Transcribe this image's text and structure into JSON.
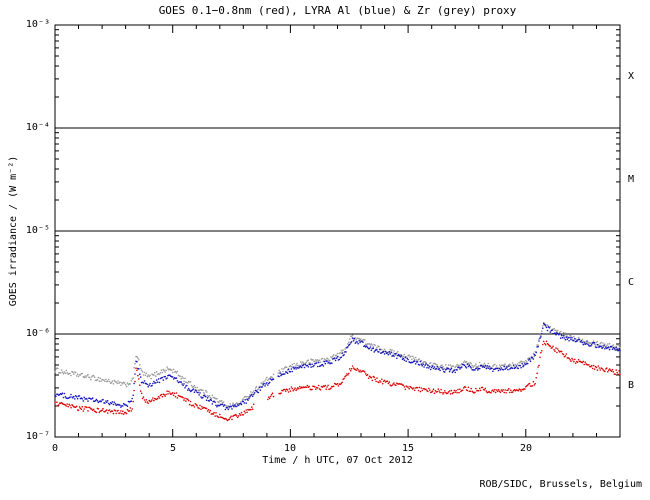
{
  "credit": "ROB/SIDC, Brussels, Belgium",
  "chart_data": {
    "type": "scatter",
    "title": "GOES 0.1−0.8nm (red), LYRA Al (blue) & Zr (grey) proxy",
    "xlabel": "Time / h UTC, 07 Oct 2012",
    "ylabel": "GOES irradiance / (W m⁻²)",
    "xlim": [
      0,
      24
    ],
    "ylim_log10": [
      -7,
      -3
    ],
    "grid": false,
    "legend": "none (colors named in title)",
    "x_major_ticks": [
      0,
      5,
      10,
      15,
      20
    ],
    "x_tick_labels": [
      "0",
      "5",
      "10",
      "15",
      "20"
    ],
    "y_tick_exponents": [
      -3,
      -4,
      -5,
      -6,
      -7
    ],
    "y_tick_labels": [
      "10⁻³",
      "10⁻⁴",
      "10⁻⁵",
      "10⁻⁶",
      "10⁻⁷"
    ],
    "hlines": [
      0.0001,
      1e-05,
      1e-06
    ],
    "flare_classes": [
      {
        "label": "X",
        "band": [
          -3,
          -4
        ]
      },
      {
        "label": "M",
        "band": [
          -4,
          -5
        ]
      },
      {
        "label": "C",
        "band": [
          -5,
          -6
        ]
      },
      {
        "label": "B",
        "band": [
          -6,
          -7
        ]
      }
    ],
    "series": [
      {
        "name": "LYRA Zr proxy",
        "color": "#9a9a9a",
        "x": [
          0,
          0.5,
          1,
          1.5,
          2,
          2.5,
          3,
          3.3,
          3.45,
          3.7,
          4,
          4.4,
          4.8,
          5.1,
          5.5,
          6,
          6.5,
          7,
          7.4,
          7.8,
          8.2,
          8.6,
          9,
          9.5,
          10,
          10.5,
          11,
          11.5,
          12,
          12.3,
          12.6,
          13,
          13.5,
          14,
          14.5,
          15,
          15.5,
          16,
          16.5,
          17,
          17.4,
          17.8,
          18.2,
          18.6,
          19,
          19.5,
          20,
          20.4,
          20.75,
          21,
          21.5,
          22,
          22.5,
          23,
          23.5,
          24
        ],
        "values": [
          4.5e-07,
          4.2e-07,
          4e-07,
          3.8e-07,
          3.6e-07,
          3.4e-07,
          3.2e-07,
          3.5e-07,
          6.5e-07,
          4.2e-07,
          3.8e-07,
          4.2e-07,
          4.6e-07,
          4.3e-07,
          3.6e-07,
          3e-07,
          2.6e-07,
          2.2e-07,
          2e-07,
          2.1e-07,
          2.5e-07,
          3e-07,
          3.6e-07,
          4.2e-07,
          4.8e-07,
          5.2e-07,
          5.5e-07,
          5.6e-07,
          6.2e-07,
          7e-07,
          9.5e-07,
          8.8e-07,
          7.6e-07,
          7e-07,
          6.5e-07,
          6e-07,
          5.5e-07,
          5e-07,
          4.8e-07,
          4.7e-07,
          5.3e-07,
          4.9e-07,
          5.1e-07,
          4.8e-07,
          4.9e-07,
          5e-07,
          5.4e-07,
          6.5e-07,
          1.25e-06,
          1.15e-06,
          1e-06,
          9.2e-07,
          8.6e-07,
          8.2e-07,
          7.8e-07,
          7.5e-07
        ],
        "gaps": [
          [
            9.3,
            9.45
          ]
        ]
      },
      {
        "name": "LYRA Al proxy",
        "color": "#1515bb",
        "x": [
          0,
          0.5,
          1,
          1.5,
          2,
          2.5,
          3,
          3.3,
          3.45,
          3.7,
          4,
          4.4,
          4.8,
          5.1,
          5.5,
          6,
          6.5,
          7,
          7.4,
          7.8,
          8.2,
          8.6,
          9,
          9.5,
          10,
          10.5,
          11,
          11.5,
          12,
          12.3,
          12.6,
          13,
          13.5,
          14,
          14.5,
          15,
          15.5,
          16,
          16.5,
          17,
          17.4,
          17.8,
          18.2,
          18.6,
          19,
          19.5,
          20,
          20.4,
          20.75,
          21,
          21.5,
          22,
          22.5,
          23,
          23.5,
          24
        ],
        "values": [
          2.6e-07,
          2.5e-07,
          2.4e-07,
          2.3e-07,
          2.2e-07,
          2.1e-07,
          2e-07,
          2.3e-07,
          5.5e-07,
          3.4e-07,
          3.2e-07,
          3.5e-07,
          3.9e-07,
          3.7e-07,
          3.1e-07,
          2.7e-07,
          2.3e-07,
          2e-07,
          1.9e-07,
          2e-07,
          2.3e-07,
          2.8e-07,
          3.3e-07,
          3.9e-07,
          4.5e-07,
          4.8e-07,
          5e-07,
          5.2e-07,
          5.7e-07,
          6.5e-07,
          8.8e-07,
          8.2e-07,
          7.1e-07,
          6.6e-07,
          6.1e-07,
          5.6e-07,
          5.2e-07,
          4.7e-07,
          4.5e-07,
          4.4e-07,
          5e-07,
          4.6e-07,
          4.8e-07,
          4.5e-07,
          4.6e-07,
          4.7e-07,
          5.1e-07,
          6.2e-07,
          1.2e-06,
          1.1e-06,
          9.5e-07,
          8.8e-07,
          8.2e-07,
          7.8e-07,
          7.4e-07,
          7.1e-07
        ],
        "gaps": [
          [
            9.3,
            9.45
          ]
        ]
      },
      {
        "name": "GOES 0.1-0.8nm",
        "color": "#dd0000",
        "x": [
          0,
          0.5,
          1,
          1.5,
          2,
          2.5,
          3,
          3.3,
          3.45,
          3.7,
          4,
          4.4,
          4.8,
          5.1,
          5.5,
          6,
          6.5,
          7,
          7.4,
          7.8,
          8.2,
          8.6,
          9,
          9.5,
          10,
          10.5,
          11,
          11.5,
          12,
          12.3,
          12.6,
          13,
          13.5,
          14,
          14.5,
          15,
          15.5,
          16,
          16.5,
          17,
          17.4,
          17.8,
          18.2,
          18.6,
          19,
          19.5,
          20,
          20.4,
          20.75,
          21,
          21.5,
          22,
          22.5,
          23,
          23.5,
          24
        ],
        "values": [
          2.1e-07,
          2e-07,
          1.9e-07,
          1.85e-07,
          1.8e-07,
          1.75e-07,
          1.7e-07,
          1.9e-07,
          4.8e-07,
          2.4e-07,
          2.2e-07,
          2.4e-07,
          2.7e-07,
          2.6e-07,
          2.3e-07,
          2e-07,
          1.8e-07,
          1.6e-07,
          1.5e-07,
          1.6e-07,
          1.8e-07,
          2.1e-07,
          2.4e-07,
          2.7e-07,
          2.9e-07,
          3e-07,
          3e-07,
          3e-07,
          3.2e-07,
          3.6e-07,
          4.7e-07,
          4.3e-07,
          3.7e-07,
          3.4e-07,
          3.2e-07,
          3e-07,
          2.9e-07,
          2.8e-07,
          2.75e-07,
          2.7e-07,
          3e-07,
          2.8e-07,
          2.9e-07,
          2.75e-07,
          2.8e-07,
          2.85e-07,
          3e-07,
          3.4e-07,
          8.5e-07,
          7.8e-07,
          6.5e-07,
          5.6e-07,
          5.1e-07,
          4.7e-07,
          4.4e-07,
          4.2e-07
        ],
        "gaps": [
          [
            8.45,
            9.0
          ],
          [
            9.3,
            9.5
          ]
        ]
      }
    ]
  }
}
